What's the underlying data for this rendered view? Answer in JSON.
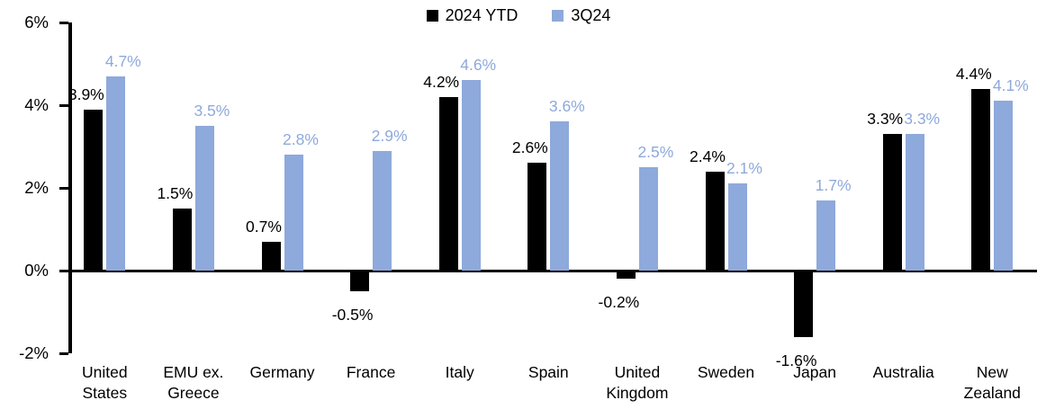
{
  "chart_data": {
    "type": "bar",
    "title": "",
    "legend_position": "top-center",
    "grid": false,
    "background": "#FFFFFF",
    "ylim": [
      -2,
      6
    ],
    "yticks": [
      {
        "label": "6%",
        "value": 6
      },
      {
        "label": "4%",
        "value": 4
      },
      {
        "label": "2%",
        "value": 2
      },
      {
        "label": "0%",
        "value": 0
      },
      {
        "label": "-2%",
        "value": -2
      }
    ],
    "categories": [
      "United States",
      "EMU ex. Greece",
      "Germany",
      "France",
      "Italy",
      "Spain",
      "United Kingdom",
      "Sweden",
      "Japan",
      "Australia",
      "New Zealand"
    ],
    "series": [
      {
        "name": "2024 YTD",
        "color": "#000000",
        "values": [
          3.9,
          1.5,
          0.7,
          -0.5,
          4.2,
          2.6,
          -0.2,
          2.4,
          -1.6,
          3.3,
          4.4
        ]
      },
      {
        "name": "3Q24",
        "color": "#8EA9DB",
        "values": [
          4.7,
          3.5,
          2.8,
          2.9,
          4.6,
          3.6,
          2.5,
          2.1,
          1.7,
          3.3,
          4.1
        ]
      }
    ],
    "data_label_format": "0.0%"
  }
}
